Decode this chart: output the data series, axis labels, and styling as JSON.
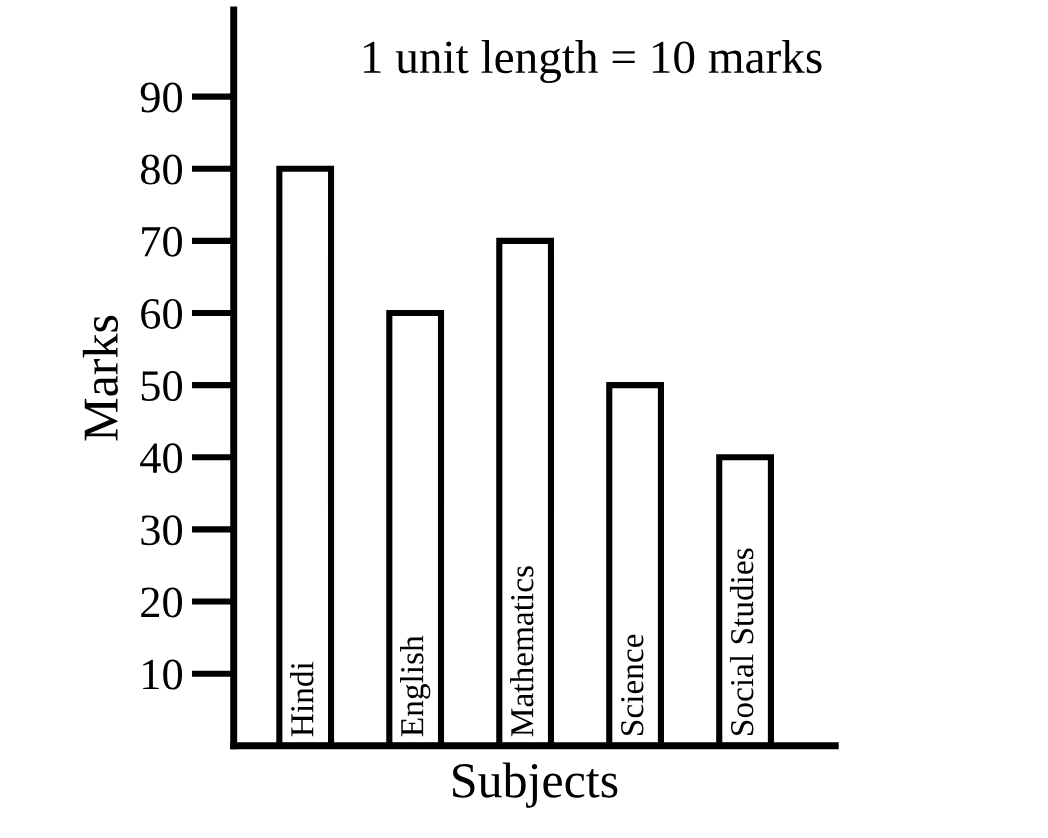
{
  "chart_data": {
    "type": "bar",
    "xlabel": "Subjects",
    "ylabel": "Marks",
    "categories": [
      "Hindi",
      "English",
      "Mathematics",
      "Science",
      "Social Studies"
    ],
    "values": [
      80,
      60,
      70,
      50,
      40
    ],
    "color": "#ffffff",
    "ylim": [
      0,
      102
    ],
    "yticks": [
      10,
      20,
      30,
      40,
      50,
      60,
      70,
      80,
      90
    ],
    "grid": false,
    "annotations": [
      "1 unit length = 10 marks"
    ]
  }
}
